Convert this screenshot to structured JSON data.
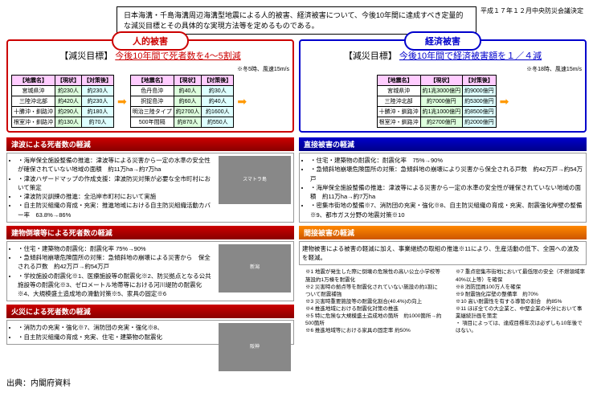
{
  "topDate": "平成１７年１２月中央防災会議決定",
  "topBox": "日本海溝・千島海溝周辺海溝型地震による人的被害、経済被害について、今後10年間に達成すべき定量的な減災目標とその具体的な実現方法等を定めるものである。",
  "left": {
    "tab": "人的被害",
    "goalLbl": "【減災目標】",
    "goalTxt": "今後10年間で死者数を4～5割減",
    "note": "※冬5時、風速15m/s",
    "t1": {
      "h": [
        "【地震名】",
        "【現状】",
        "【対策後】"
      ],
      "r": [
        [
          "宮城県沖",
          "約230人",
          "約230人"
        ],
        [
          "三陸沖北部",
          "約420人",
          "約230人"
        ],
        [
          "十勝沖・釧路沖",
          "約290人",
          "約180人"
        ],
        [
          "根室沖・釧路沖",
          "約130人",
          "約70人"
        ]
      ]
    },
    "t2": {
      "h": [
        "【地震名】",
        "【現状】",
        "【対策後】"
      ],
      "r": [
        [
          "色丹島沖",
          "約40人",
          "約30人"
        ],
        [
          "択捉島沖",
          "約60人",
          "約40人"
        ],
        [
          "明治三陸タイプ",
          "約2700人",
          "約1600人"
        ],
        [
          "500年間隔",
          "約870人",
          "約550人"
        ]
      ]
    }
  },
  "right": {
    "tab": "経済被害",
    "goalLbl": "【減災目標】",
    "goalTxt": "今後10年間で経済被害額を１／４減",
    "note": "※冬18時、風速15m/s",
    "t": {
      "h": [
        "【地震名】",
        "【現状】",
        "【対策後】"
      ],
      "r": [
        [
          "宮城県沖",
          "約1兆3000億円",
          "約9000億円"
        ],
        [
          "三陸沖北部",
          "約7000億円",
          "約5300億円"
        ],
        [
          "十勝沖・釧路沖",
          "約1兆1000億円",
          "約8500億円"
        ],
        [
          "根室沖・釧路沖",
          "約2700億円",
          "約2000億円"
        ]
      ]
    }
  },
  "s1": {
    "title": "津波による死者数の軽減",
    "items": [
      "海岸保全施設整備の推進：津波等による災害から一定の水準の安全性が確保されていない地域の面積　約11万ha→約7万ha",
      "津波ハザードマップの作成支援：津波防災対策が必要な全市町村において策定",
      "津波防災訓練の推進：全沿岸市町村において実施",
      "自主防災組織の育成・充実：推進地域における自主防災組織活動カバー率　63.8%→86%"
    ]
  },
  "s2": {
    "title": "建物倒壊等による死者数の軽減",
    "items": [
      "住宅・建築物の耐震化：耐震化率 75%→90%",
      "急傾斜地崩壊危険箇所の対策：急傾斜地の崩壊による災害から　保全される戸数　約42万戸→約54万戸",
      "学校施設の耐震化※1、医療施設等の耐震化※2、防災拠点となる公共施設等の耐震化※3、ゼロメートル地帯等における河川堤防の耐震化※4、大規模盛土造成地の滑動対策※5、家具の固定※6"
    ]
  },
  "s3": {
    "title": "火災による死者数の軽減",
    "items": [
      "消防力の充実・強化※7、消防団の充実・強化※8、",
      "自主防災組織の育成・充実、住宅・建築物の耐震化"
    ]
  },
  "s4": {
    "title": "直接被害の軽減",
    "items": [
      "住宅・建築物の耐震化：耐震化率　75%→90%",
      "急傾斜地崩壊危険箇所の対策：急傾斜地の崩壊により災害から保全される戸数　約42万戸→約54万戸",
      "海岸保全施設整備の推進：津波等による災害から一定の水準の安全性が確保されていない地域の面積　約11万ha→約7万ha",
      "密集市街地の整備※7、消防団の充実・強化※8、自主防災組織の育成・充実、耐震強化岸壁の整備※9、都市ガス分野の地震対策※10"
    ]
  },
  "s5": {
    "title": "間接被害の軽減",
    "txt": "建物被害による被害の軽減に加え、事業継続の取組の推進※11により、生産活動の低下、全国への波及を軽減。"
  },
  "fn1": [
    "※1 地震が発生した際に倒壊の危険性の高い公立小学校等施設約1万棟を耐震化",
    "※2 災害時の拠点等を耐震化されていない施設の約1割について耐震補強",
    "※3 災害時重要施設等の耐震化割合(40.4%)の向上",
    "※4 推進地域における耐震化対策の推進",
    "※5 特に危険な大規模盛土造成地の箇所　約1000箇所→約500箇所",
    "※6 推進地域等における家具の固定率 約50%"
  ],
  "fn2": [
    "※7 重点密集市街地において最低限の安全（不燃領域率40%以上等）を確保",
    "※8 消防団員100万人を確保",
    "※9 耐震強化岸壁の整備率　約70%",
    "※10 高い耐震性を有する導管の割合　約85%",
    "※11 ほぼ全ての大企業と、中堅企業の半分において事業継続計画を策定",
    "・ 項目によっては、達成目標年次は必ずしも10年後ではない。"
  ],
  "source": "出典：内閣府資料"
}
